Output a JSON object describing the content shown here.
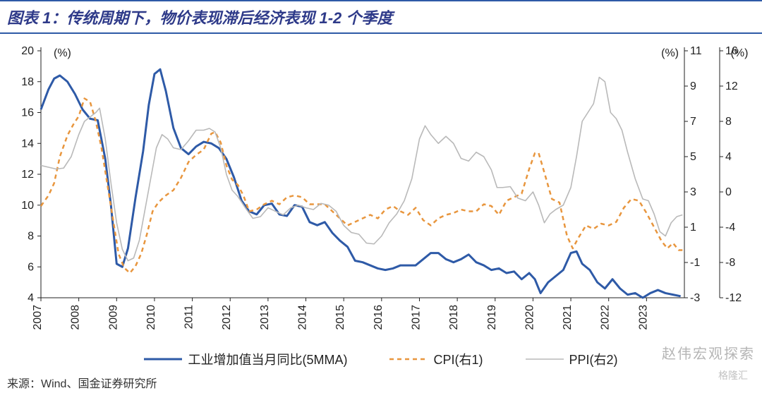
{
  "title": "图表 1：传统周期下，物价表现滞后经济表现 1-2 个季度",
  "source": "来源：Wind、国金证券研究所",
  "watermark": "赵伟宏观探索",
  "wm_logo": "格隆汇",
  "chart": {
    "type": "line",
    "background_color": "#ffffff",
    "left_axis": {
      "label": "(%)",
      "min": 4,
      "max": 20,
      "step": 2,
      "fontsize": 16,
      "color": "#222"
    },
    "right_axis_1": {
      "label": "(%)",
      "min": -3,
      "max": 11,
      "step": 2,
      "fontsize": 16,
      "color": "#222"
    },
    "right_axis_2": {
      "label": "(%)",
      "min": -12,
      "max": 16,
      "step": 4,
      "fontsize": 16,
      "color": "#222"
    },
    "x": {
      "start": 2007,
      "end": 2024,
      "tick_years": [
        2007,
        2008,
        2009,
        2010,
        2011,
        2012,
        2013,
        2014,
        2015,
        2016,
        2017,
        2018,
        2019,
        2020,
        2021,
        2022,
        2023
      ],
      "fontsize": 16,
      "rotation": 90
    },
    "tick_color": "#222",
    "series": [
      {
        "name": "工业增加值当月同比(5MMA)",
        "axis": "left",
        "color": "#2e5aa7",
        "line_width": 3,
        "dash": "none",
        "data": [
          [
            2007.0,
            16.2
          ],
          [
            2007.2,
            17.5
          ],
          [
            2007.35,
            18.2
          ],
          [
            2007.5,
            18.4
          ],
          [
            2007.7,
            18.0
          ],
          [
            2007.9,
            17.2
          ],
          [
            2008.1,
            16.2
          ],
          [
            2008.3,
            15.6
          ],
          [
            2008.5,
            15.5
          ],
          [
            2008.7,
            13.0
          ],
          [
            2008.85,
            10.0
          ],
          [
            2009.0,
            6.2
          ],
          [
            2009.15,
            6.0
          ],
          [
            2009.3,
            7.2
          ],
          [
            2009.5,
            10.5
          ],
          [
            2009.7,
            13.5
          ],
          [
            2009.85,
            16.5
          ],
          [
            2010.0,
            18.5
          ],
          [
            2010.15,
            18.8
          ],
          [
            2010.3,
            17.4
          ],
          [
            2010.5,
            15.0
          ],
          [
            2010.7,
            13.7
          ],
          [
            2010.9,
            13.3
          ],
          [
            2011.1,
            13.8
          ],
          [
            2011.3,
            14.1
          ],
          [
            2011.5,
            14.0
          ],
          [
            2011.7,
            13.7
          ],
          [
            2011.9,
            13.0
          ],
          [
            2012.1,
            11.8
          ],
          [
            2012.3,
            10.3
          ],
          [
            2012.5,
            9.6
          ],
          [
            2012.7,
            9.4
          ],
          [
            2012.9,
            10.0
          ],
          [
            2013.1,
            10.1
          ],
          [
            2013.3,
            9.4
          ],
          [
            2013.5,
            9.3
          ],
          [
            2013.7,
            10.0
          ],
          [
            2013.9,
            9.9
          ],
          [
            2014.1,
            8.9
          ],
          [
            2014.3,
            8.7
          ],
          [
            2014.5,
            8.9
          ],
          [
            2014.7,
            8.2
          ],
          [
            2014.9,
            7.7
          ],
          [
            2015.1,
            7.3
          ],
          [
            2015.3,
            6.4
          ],
          [
            2015.5,
            6.3
          ],
          [
            2015.7,
            6.1
          ],
          [
            2015.9,
            5.9
          ],
          [
            2016.1,
            5.8
          ],
          [
            2016.3,
            5.9
          ],
          [
            2016.5,
            6.1
          ],
          [
            2016.7,
            6.1
          ],
          [
            2016.9,
            6.1
          ],
          [
            2017.1,
            6.5
          ],
          [
            2017.3,
            6.9
          ],
          [
            2017.5,
            6.9
          ],
          [
            2017.7,
            6.5
          ],
          [
            2017.9,
            6.3
          ],
          [
            2018.1,
            6.5
          ],
          [
            2018.3,
            6.8
          ],
          [
            2018.5,
            6.3
          ],
          [
            2018.7,
            6.1
          ],
          [
            2018.9,
            5.8
          ],
          [
            2019.1,
            5.9
          ],
          [
            2019.3,
            5.6
          ],
          [
            2019.5,
            5.7
          ],
          [
            2019.7,
            5.2
          ],
          [
            2019.9,
            5.6
          ],
          [
            2020.05,
            5.2
          ],
          [
            2020.2,
            4.3
          ],
          [
            2020.4,
            5.0
          ],
          [
            2020.6,
            5.4
          ],
          [
            2020.8,
            5.8
          ],
          [
            2021.0,
            6.9
          ],
          [
            2021.15,
            7.0
          ],
          [
            2021.3,
            6.2
          ],
          [
            2021.5,
            5.8
          ],
          [
            2021.7,
            5.0
          ],
          [
            2021.9,
            4.6
          ],
          [
            2022.1,
            5.2
          ],
          [
            2022.3,
            4.6
          ],
          [
            2022.5,
            4.2
          ],
          [
            2022.7,
            4.3
          ],
          [
            2022.9,
            4.0
          ],
          [
            2023.1,
            4.3
          ],
          [
            2023.3,
            4.5
          ],
          [
            2023.5,
            4.3
          ],
          [
            2023.7,
            4.2
          ],
          [
            2023.9,
            4.1
          ]
        ]
      },
      {
        "name": "CPI(右1)",
        "axis": "right1",
        "color": "#e8963e",
        "line_width": 2.5,
        "dash": "6,5",
        "data": [
          [
            2007.0,
            2.2
          ],
          [
            2007.2,
            2.8
          ],
          [
            2007.35,
            3.5
          ],
          [
            2007.5,
            5.0
          ],
          [
            2007.7,
            6.2
          ],
          [
            2007.85,
            6.8
          ],
          [
            2008.0,
            7.3
          ],
          [
            2008.15,
            8.3
          ],
          [
            2008.3,
            8.1
          ],
          [
            2008.45,
            7.0
          ],
          [
            2008.6,
            5.5
          ],
          [
            2008.75,
            3.5
          ],
          [
            2008.9,
            1.5
          ],
          [
            2009.05,
            -0.5
          ],
          [
            2009.2,
            -1.3
          ],
          [
            2009.35,
            -1.6
          ],
          [
            2009.5,
            -1.2
          ],
          [
            2009.65,
            -0.5
          ],
          [
            2009.8,
            0.6
          ],
          [
            2009.95,
            1.9
          ],
          [
            2010.1,
            2.4
          ],
          [
            2010.3,
            2.8
          ],
          [
            2010.5,
            3.1
          ],
          [
            2010.7,
            3.8
          ],
          [
            2010.9,
            4.7
          ],
          [
            2011.1,
            5.1
          ],
          [
            2011.3,
            5.4
          ],
          [
            2011.5,
            6.3
          ],
          [
            2011.6,
            6.4
          ],
          [
            2011.75,
            5.8
          ],
          [
            2011.9,
            4.5
          ],
          [
            2012.05,
            3.7
          ],
          [
            2012.2,
            3.4
          ],
          [
            2012.35,
            2.8
          ],
          [
            2012.5,
            1.9
          ],
          [
            2012.7,
            2.0
          ],
          [
            2012.9,
            2.3
          ],
          [
            2013.1,
            2.5
          ],
          [
            2013.3,
            2.3
          ],
          [
            2013.5,
            2.7
          ],
          [
            2013.7,
            2.8
          ],
          [
            2013.9,
            2.7
          ],
          [
            2014.1,
            2.3
          ],
          [
            2014.3,
            2.3
          ],
          [
            2014.5,
            2.3
          ],
          [
            2014.7,
            1.9
          ],
          [
            2014.9,
            1.5
          ],
          [
            2015.1,
            1.1
          ],
          [
            2015.3,
            1.3
          ],
          [
            2015.5,
            1.5
          ],
          [
            2015.7,
            1.7
          ],
          [
            2015.9,
            1.5
          ],
          [
            2016.1,
            2.0
          ],
          [
            2016.3,
            2.2
          ],
          [
            2016.5,
            1.9
          ],
          [
            2016.7,
            1.7
          ],
          [
            2016.9,
            2.1
          ],
          [
            2017.1,
            1.4
          ],
          [
            2017.3,
            1.1
          ],
          [
            2017.5,
            1.5
          ],
          [
            2017.7,
            1.7
          ],
          [
            2017.9,
            1.8
          ],
          [
            2018.1,
            2.0
          ],
          [
            2018.3,
            1.9
          ],
          [
            2018.5,
            1.9
          ],
          [
            2018.7,
            2.3
          ],
          [
            2018.9,
            2.2
          ],
          [
            2019.1,
            1.7
          ],
          [
            2019.3,
            2.5
          ],
          [
            2019.5,
            2.7
          ],
          [
            2019.7,
            2.9
          ],
          [
            2019.9,
            4.3
          ],
          [
            2020.05,
            5.2
          ],
          [
            2020.15,
            5.2
          ],
          [
            2020.3,
            4.1
          ],
          [
            2020.5,
            2.6
          ],
          [
            2020.7,
            2.4
          ],
          [
            2020.9,
            0.5
          ],
          [
            2021.05,
            -0.2
          ],
          [
            2021.2,
            0.4
          ],
          [
            2021.4,
            1.1
          ],
          [
            2021.6,
            0.9
          ],
          [
            2021.8,
            1.2
          ],
          [
            2022.0,
            1.1
          ],
          [
            2022.2,
            1.3
          ],
          [
            2022.4,
            2.1
          ],
          [
            2022.6,
            2.6
          ],
          [
            2022.8,
            2.5
          ],
          [
            2023.0,
            1.8
          ],
          [
            2023.2,
            1.0
          ],
          [
            2023.4,
            0.2
          ],
          [
            2023.55,
            -0.2
          ],
          [
            2023.7,
            0.1
          ],
          [
            2023.85,
            -0.3
          ],
          [
            2023.95,
            -0.3
          ]
        ]
      },
      {
        "name": "PPI(右2)",
        "axis": "right2",
        "color": "#b9b9b9",
        "line_width": 1.6,
        "dash": "none",
        "data": [
          [
            2007.0,
            3.0
          ],
          [
            2007.2,
            2.8
          ],
          [
            2007.4,
            2.6
          ],
          [
            2007.6,
            2.7
          ],
          [
            2007.8,
            4.0
          ],
          [
            2008.0,
            6.5
          ],
          [
            2008.15,
            8.0
          ],
          [
            2008.3,
            8.5
          ],
          [
            2008.45,
            9.0
          ],
          [
            2008.55,
            9.5
          ],
          [
            2008.7,
            6.0
          ],
          [
            2008.85,
            1.0
          ],
          [
            2009.0,
            -3.5
          ],
          [
            2009.15,
            -6.5
          ],
          [
            2009.3,
            -7.8
          ],
          [
            2009.45,
            -7.5
          ],
          [
            2009.6,
            -5.5
          ],
          [
            2009.75,
            -2.0
          ],
          [
            2009.9,
            1.5
          ],
          [
            2010.05,
            5.0
          ],
          [
            2010.2,
            6.5
          ],
          [
            2010.35,
            6.0
          ],
          [
            2010.5,
            5.0
          ],
          [
            2010.7,
            4.8
          ],
          [
            2010.9,
            5.8
          ],
          [
            2011.1,
            7.0
          ],
          [
            2011.3,
            7.0
          ],
          [
            2011.45,
            7.2
          ],
          [
            2011.6,
            6.8
          ],
          [
            2011.75,
            5.0
          ],
          [
            2011.9,
            2.0
          ],
          [
            2012.05,
            0.2
          ],
          [
            2012.2,
            -0.5
          ],
          [
            2012.4,
            -1.8
          ],
          [
            2012.6,
            -3.0
          ],
          [
            2012.8,
            -2.8
          ],
          [
            2013.0,
            -1.8
          ],
          [
            2013.2,
            -2.2
          ],
          [
            2013.4,
            -2.6
          ],
          [
            2013.6,
            -1.8
          ],
          [
            2013.8,
            -1.5
          ],
          [
            2014.0,
            -1.8
          ],
          [
            2014.2,
            -2.0
          ],
          [
            2014.4,
            -1.3
          ],
          [
            2014.6,
            -1.5
          ],
          [
            2014.8,
            -2.2
          ],
          [
            2015.0,
            -3.8
          ],
          [
            2015.2,
            -4.6
          ],
          [
            2015.4,
            -4.8
          ],
          [
            2015.6,
            -5.8
          ],
          [
            2015.8,
            -5.9
          ],
          [
            2016.0,
            -5.0
          ],
          [
            2016.2,
            -3.5
          ],
          [
            2016.4,
            -2.5
          ],
          [
            2016.6,
            -1.0
          ],
          [
            2016.8,
            1.5
          ],
          [
            2017.0,
            6.0
          ],
          [
            2017.15,
            7.5
          ],
          [
            2017.3,
            6.5
          ],
          [
            2017.5,
            5.5
          ],
          [
            2017.7,
            6.3
          ],
          [
            2017.9,
            5.5
          ],
          [
            2018.1,
            3.8
          ],
          [
            2018.3,
            3.5
          ],
          [
            2018.5,
            4.5
          ],
          [
            2018.7,
            4.0
          ],
          [
            2018.9,
            2.5
          ],
          [
            2019.05,
            0.5
          ],
          [
            2019.2,
            0.5
          ],
          [
            2019.4,
            0.6
          ],
          [
            2019.6,
            -0.7
          ],
          [
            2019.8,
            -1.0
          ],
          [
            2020.0,
            0.0
          ],
          [
            2020.15,
            -1.5
          ],
          [
            2020.3,
            -3.5
          ],
          [
            2020.45,
            -2.5
          ],
          [
            2020.6,
            -2.0
          ],
          [
            2020.8,
            -1.5
          ],
          [
            2021.0,
            0.5
          ],
          [
            2021.15,
            4.0
          ],
          [
            2021.3,
            8.0
          ],
          [
            2021.45,
            9.0
          ],
          [
            2021.6,
            10.0
          ],
          [
            2021.75,
            13.0
          ],
          [
            2021.9,
            12.5
          ],
          [
            2022.05,
            9.0
          ],
          [
            2022.2,
            8.3
          ],
          [
            2022.35,
            7.0
          ],
          [
            2022.5,
            4.5
          ],
          [
            2022.7,
            1.5
          ],
          [
            2022.9,
            -0.8
          ],
          [
            2023.05,
            -1.0
          ],
          [
            2023.2,
            -2.5
          ],
          [
            2023.35,
            -4.5
          ],
          [
            2023.5,
            -5.0
          ],
          [
            2023.65,
            -3.5
          ],
          [
            2023.8,
            -2.8
          ],
          [
            2023.95,
            -2.6
          ]
        ]
      }
    ],
    "legend_position": "bottom"
  }
}
